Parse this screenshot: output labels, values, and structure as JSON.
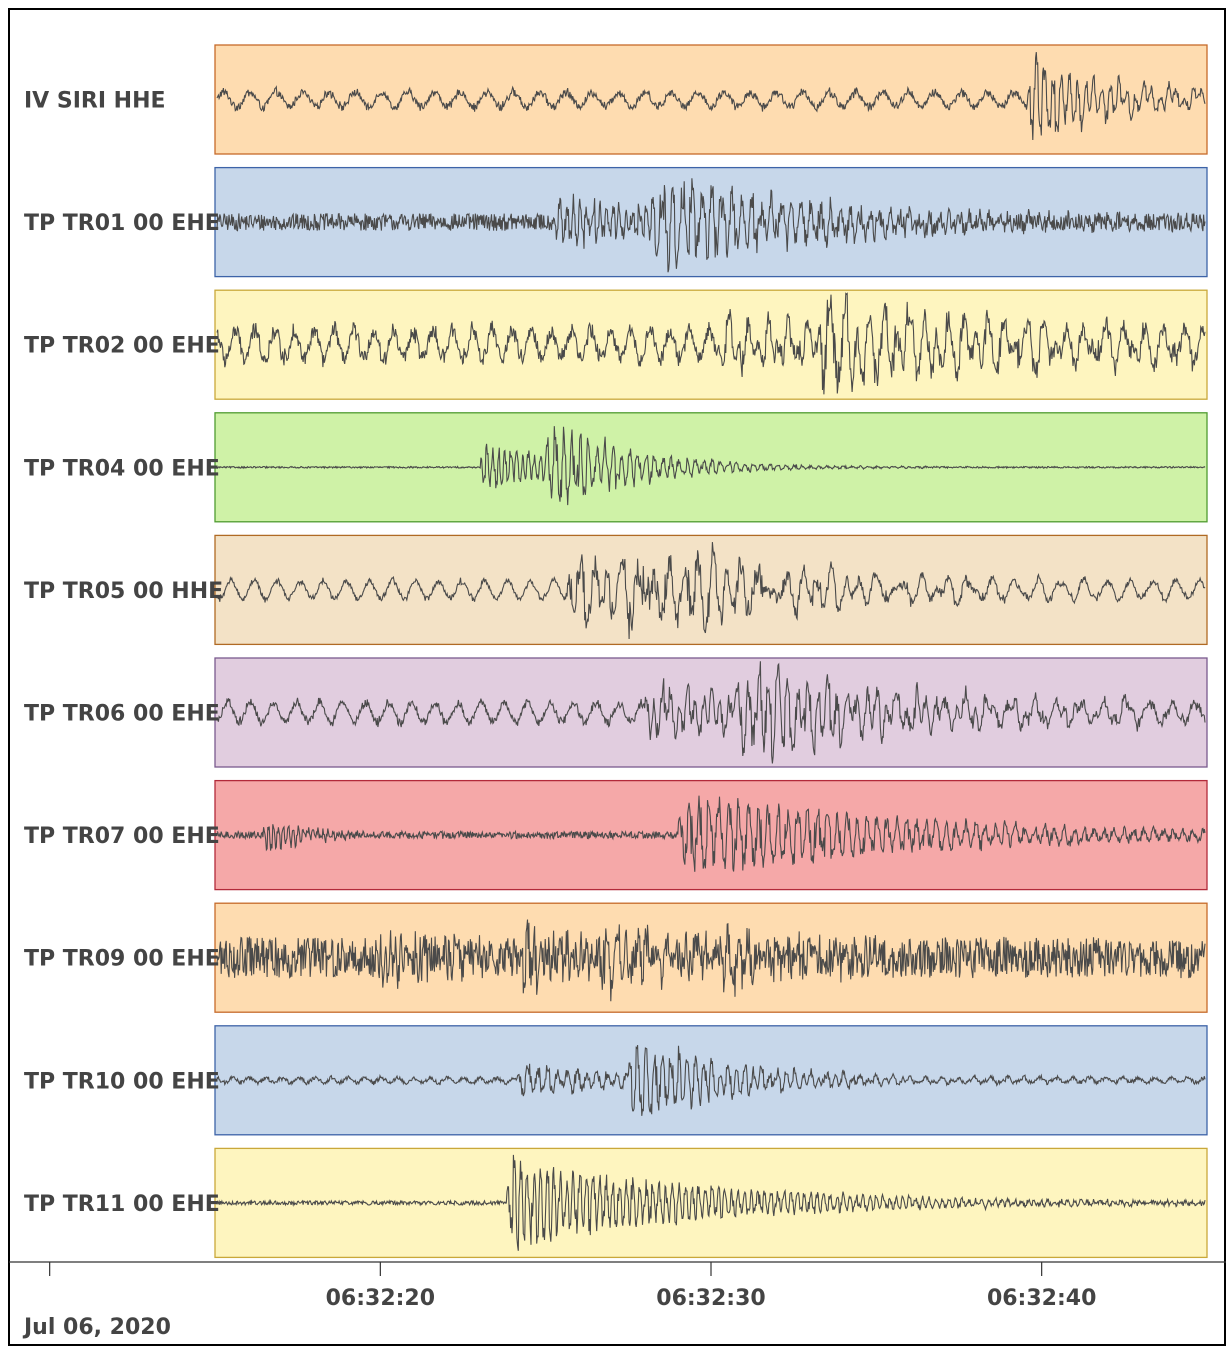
{
  "chart_data": {
    "type": "line",
    "title": "",
    "xlabel": "",
    "ylabel": "",
    "date_label": "Jul 06, 2020",
    "time_range": [
      "06:32:15",
      "06:32:45"
    ],
    "x_ticks": [
      {
        "time": "06:32:10",
        "label": ""
      },
      {
        "time": "06:32:20",
        "label": "06:32:20"
      },
      {
        "time": "06:32:30",
        "label": "06:32:30"
      },
      {
        "time": "06:32:40",
        "label": "06:32:40"
      }
    ],
    "series": [
      {
        "name": "IV SIRI  HHE",
        "color": "#fedcb0",
        "border": "#c66a2a",
        "trace_color": "#4a4a4a",
        "noise": 0.07,
        "wave": 0.18,
        "wavePeriod": 0.8,
        "bursts": [
          {
            "t": 24.6,
            "amp": 1.0,
            "decay": 2.5,
            "period": 0.25
          }
        ]
      },
      {
        "name": "TP TR01 00 EHE",
        "color": "#c7d7ea",
        "border": "#3d63a8",
        "trace_color": "#4a4a4a",
        "noise": 0.17,
        "wave": 0.0,
        "wavePeriod": 1.0,
        "bursts": [
          {
            "t": 10.2,
            "amp": 0.5,
            "decay": 5,
            "period": 0.2
          },
          {
            "t": 13.2,
            "amp": 1.0,
            "decay": 5,
            "period": 0.3
          }
        ]
      },
      {
        "name": "TP TR02 00 EHE",
        "color": "#fef5bf",
        "border": "#c9a83a",
        "trace_color": "#4a4a4a",
        "noise": 0.15,
        "wave": 0.35,
        "wavePeriod": 0.6,
        "bursts": [
          {
            "t": 15.2,
            "amp": 0.45,
            "decay": 6,
            "period": 0.3
          },
          {
            "t": 18.2,
            "amp": 1.0,
            "decay": 6,
            "period": 0.4
          }
        ]
      },
      {
        "name": "TP TR04 00 EHE",
        "color": "#cff2a7",
        "border": "#4f9c30",
        "trace_color": "#4a4a4a",
        "noise": 0.015,
        "wave": 0.0,
        "wavePeriod": 1.0,
        "bursts": [
          {
            "t": 8.0,
            "amp": 0.6,
            "decay": 2.5,
            "period": 0.18
          },
          {
            "t": 10.0,
            "amp": 1.0,
            "decay": 2.5,
            "period": 0.25
          }
        ]
      },
      {
        "name": "TP TR05 00 HHE",
        "color": "#f3e2c6",
        "border": "#b06a24",
        "trace_color": "#4a4a4a",
        "noise": 0.04,
        "wave": 0.22,
        "wavePeriod": 0.7,
        "bursts": [
          {
            "t": 10.6,
            "amp": 0.7,
            "decay": 5,
            "period": 0.4
          },
          {
            "t": 12.3,
            "amp": 1.0,
            "decay": 5,
            "period": 0.45
          }
        ]
      },
      {
        "name": "TP TR06 00 EHE",
        "color": "#e1cddf",
        "border": "#7a5a8e",
        "trace_color": "#4a4a4a",
        "noise": 0.07,
        "wave": 0.24,
        "wavePeriod": 0.7,
        "bursts": [
          {
            "t": 13.0,
            "amp": 0.55,
            "decay": 5,
            "period": 0.25
          },
          {
            "t": 15.8,
            "amp": 1.0,
            "decay": 5,
            "period": 0.3
          }
        ]
      },
      {
        "name": "TP TR07 00 EHE",
        "color": "#f5a8a8",
        "border": "#b22a3a",
        "trace_color": "#4a4a4a",
        "noise": 0.07,
        "wave": 0.0,
        "wavePeriod": 1.0,
        "bursts": [
          {
            "t": 1.4,
            "amp": 0.45,
            "decay": 1.2,
            "period": 0.15
          },
          {
            "t": 14.0,
            "amp": 1.0,
            "decay": 7,
            "period": 0.3
          }
        ]
      },
      {
        "name": "TP TR09 00 EHE",
        "color": "#fedcb0",
        "border": "#c66a2a",
        "trace_color": "#4a4a4a",
        "noise": 0.4,
        "wave": 0.0,
        "wavePeriod": 1.0,
        "bursts": [
          {
            "t": 4.8,
            "amp": 0.45,
            "decay": 2,
            "period": 0.15
          },
          {
            "t": 9.0,
            "amp": 0.55,
            "decay": 3,
            "period": 0.2
          },
          {
            "t": 11.5,
            "amp": 0.6,
            "decay": 3,
            "period": 0.3
          },
          {
            "t": 15.2,
            "amp": 0.7,
            "decay": 2,
            "period": 0.3
          }
        ]
      },
      {
        "name": "TP TR10 00 EHE",
        "color": "#c7d7ea",
        "border": "#3d63a8",
        "trace_color": "#4a4a4a",
        "noise": 0.04,
        "wave": 0.06,
        "wavePeriod": 0.5,
        "bursts": [
          {
            "t": 9.1,
            "amp": 0.35,
            "decay": 4,
            "period": 0.3
          },
          {
            "t": 12.5,
            "amp": 1.0,
            "decay": 3,
            "period": 0.25
          }
        ]
      },
      {
        "name": "TP TR11 00 EHE",
        "color": "#fef5bf",
        "border": "#c9a83a",
        "trace_color": "#4a4a4a",
        "noise": 0.04,
        "wave": 0.0,
        "wavePeriod": 1.0,
        "bursts": [
          {
            "t": 8.8,
            "amp": 1.0,
            "decay": 6,
            "period": 0.2
          }
        ]
      }
    ]
  }
}
